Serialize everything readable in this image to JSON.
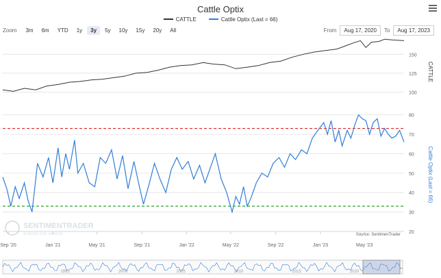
{
  "title": "Cattle Optix",
  "menu_icon": "hamburger-menu-icon",
  "legend": [
    {
      "name": "CATTLE",
      "color": "#333333"
    },
    {
      "name": "Cattle Optix (Last = 66)",
      "color": "#2f7ed8"
    }
  ],
  "zoom": {
    "label": "Zoom",
    "buttons": [
      "3m",
      "6m",
      "YTD",
      "1y",
      "3y",
      "5y",
      "10y",
      "15y",
      "20y",
      "All"
    ],
    "active": "3y"
  },
  "range": {
    "from_label": "From",
    "from_value": "Aug 17, 2020",
    "to_label": "To",
    "to_value": "Aug 17, 2023"
  },
  "source": "Source: SentimenTrader",
  "watermark": {
    "name": "SENTIMENTRADER",
    "tagline": "analysis over emotion"
  },
  "navigator_years": [
    "1995",
    "2000",
    "2005",
    "2010",
    "2015",
    "2020"
  ],
  "chart_data": [
    {
      "type": "line",
      "name": "CATTLE",
      "ylabel": "CATTLE",
      "ylim": [
        95,
        172
      ],
      "yticks": [
        100,
        125,
        150
      ],
      "x_ticks": [
        "Sep '20",
        "Jan '21",
        "May '21",
        "Sep '21",
        "Jan '22",
        "May '22",
        "Sep '22",
        "Jan '23",
        "May '23"
      ],
      "x_range": [
        "2020-08-17",
        "2023-08-17"
      ],
      "points": [
        [
          "2020-08-17",
          103
        ],
        [
          "2020-09-15",
          101
        ],
        [
          "2020-10-15",
          105
        ],
        [
          "2020-11-15",
          103
        ],
        [
          "2020-12-15",
          108
        ],
        [
          "2021-01-15",
          110
        ],
        [
          "2021-02-15",
          113
        ],
        [
          "2021-03-15",
          114
        ],
        [
          "2021-04-15",
          116
        ],
        [
          "2021-05-15",
          117
        ],
        [
          "2021-06-15",
          119
        ],
        [
          "2021-07-15",
          121
        ],
        [
          "2021-08-15",
          125
        ],
        [
          "2021-09-15",
          126
        ],
        [
          "2021-10-15",
          129
        ],
        [
          "2021-11-15",
          133
        ],
        [
          "2021-12-15",
          135
        ],
        [
          "2022-01-15",
          136
        ],
        [
          "2022-02-15",
          139
        ],
        [
          "2022-03-15",
          137
        ],
        [
          "2022-04-15",
          136
        ],
        [
          "2022-05-15",
          131
        ],
        [
          "2022-06-15",
          133
        ],
        [
          "2022-07-15",
          135
        ],
        [
          "2022-08-15",
          139
        ],
        [
          "2022-09-15",
          141
        ],
        [
          "2022-10-15",
          146
        ],
        [
          "2022-11-15",
          150
        ],
        [
          "2022-12-15",
          153
        ],
        [
          "2023-01-15",
          155
        ],
        [
          "2023-02-15",
          157
        ],
        [
          "2023-03-15",
          162
        ],
        [
          "2023-04-01",
          165
        ],
        [
          "2023-04-20",
          168
        ],
        [
          "2023-05-05",
          159
        ],
        [
          "2023-05-20",
          166
        ],
        [
          "2023-06-10",
          167
        ],
        [
          "2023-06-25",
          170
        ],
        [
          "2023-07-15",
          169
        ],
        [
          "2023-08-17",
          168
        ]
      ]
    },
    {
      "type": "line",
      "name": "Cattle Optix (Last = 66)",
      "ylabel": "Cattle Optix (Last = 66)",
      "ylim": [
        20,
        82
      ],
      "yticks": [
        20,
        30,
        40,
        50,
        60,
        70,
        80
      ],
      "reference_lines": [
        {
          "value": 73,
          "color": "#d62728",
          "style": "dashed"
        },
        {
          "value": 33,
          "color": "#2ca02c",
          "style": "dashed"
        }
      ],
      "points": [
        [
          "2020-08-17",
          48
        ],
        [
          "2020-08-28",
          42
        ],
        [
          "2020-09-08",
          33
        ],
        [
          "2020-09-20",
          43
        ],
        [
          "2020-10-01",
          37
        ],
        [
          "2020-10-15",
          45
        ],
        [
          "2020-10-25",
          36
        ],
        [
          "2020-11-05",
          30
        ],
        [
          "2020-11-20",
          55
        ],
        [
          "2020-12-05",
          48
        ],
        [
          "2020-12-20",
          58
        ],
        [
          "2021-01-01",
          45
        ],
        [
          "2021-01-15",
          63
        ],
        [
          "2021-01-25",
          48
        ],
        [
          "2021-02-05",
          60
        ],
        [
          "2021-02-15",
          52
        ],
        [
          "2021-03-01",
          67
        ],
        [
          "2021-03-10",
          50
        ],
        [
          "2021-03-25",
          55
        ],
        [
          "2021-04-10",
          45
        ],
        [
          "2021-04-25",
          43
        ],
        [
          "2021-05-10",
          58
        ],
        [
          "2021-05-25",
          55
        ],
        [
          "2021-06-10",
          62
        ],
        [
          "2021-06-25",
          47
        ],
        [
          "2021-07-10",
          59
        ],
        [
          "2021-07-25",
          42
        ],
        [
          "2021-08-10",
          56
        ],
        [
          "2021-08-25",
          43
        ],
        [
          "2021-09-05",
          34
        ],
        [
          "2021-09-20",
          44
        ],
        [
          "2021-10-05",
          55
        ],
        [
          "2021-10-20",
          47
        ],
        [
          "2021-11-05",
          40
        ],
        [
          "2021-11-20",
          52
        ],
        [
          "2021-12-05",
          58
        ],
        [
          "2021-12-20",
          52
        ],
        [
          "2022-01-05",
          56
        ],
        [
          "2022-01-20",
          47
        ],
        [
          "2022-02-05",
          54
        ],
        [
          "2022-02-20",
          45
        ],
        [
          "2022-03-05",
          52
        ],
        [
          "2022-03-20",
          60
        ],
        [
          "2022-04-05",
          47
        ],
        [
          "2022-04-20",
          40
        ],
        [
          "2022-05-05",
          30
        ],
        [
          "2022-05-15",
          38
        ],
        [
          "2022-05-25",
          34
        ],
        [
          "2022-06-05",
          43
        ],
        [
          "2022-06-15",
          33
        ],
        [
          "2022-06-25",
          37
        ],
        [
          "2022-07-10",
          45
        ],
        [
          "2022-07-25",
          50
        ],
        [
          "2022-08-10",
          48
        ],
        [
          "2022-08-25",
          55
        ],
        [
          "2022-09-10",
          58
        ],
        [
          "2022-09-25",
          53
        ],
        [
          "2022-10-10",
          60
        ],
        [
          "2022-10-25",
          57
        ],
        [
          "2022-11-10",
          62
        ],
        [
          "2022-11-25",
          60
        ],
        [
          "2022-12-10",
          68
        ],
        [
          "2022-12-25",
          72
        ],
        [
          "2023-01-10",
          76
        ],
        [
          "2023-01-20",
          70
        ],
        [
          "2023-01-30",
          77
        ],
        [
          "2023-02-10",
          66
        ],
        [
          "2023-02-20",
          72
        ],
        [
          "2023-03-01",
          64
        ],
        [
          "2023-03-15",
          72
        ],
        [
          "2023-03-25",
          68
        ],
        [
          "2023-04-05",
          75
        ],
        [
          "2023-04-15",
          80
        ],
        [
          "2023-04-25",
          78
        ],
        [
          "2023-05-05",
          77
        ],
        [
          "2023-05-15",
          70
        ],
        [
          "2023-05-25",
          76
        ],
        [
          "2023-06-05",
          78
        ],
        [
          "2023-06-15",
          69
        ],
        [
          "2023-06-25",
          73
        ],
        [
          "2023-07-05",
          70
        ],
        [
          "2023-07-15",
          68
        ],
        [
          "2023-07-25",
          69
        ],
        [
          "2023-08-05",
          72
        ],
        [
          "2023-08-17",
          66
        ]
      ]
    }
  ]
}
